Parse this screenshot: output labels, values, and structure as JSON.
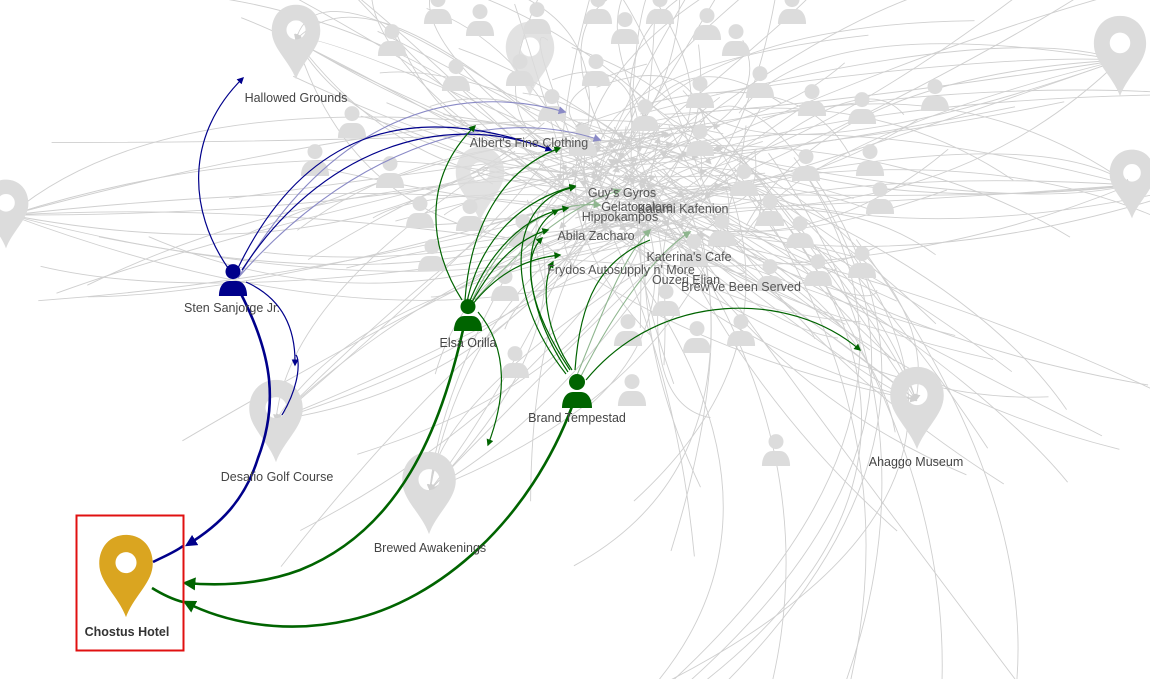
{
  "colors": {
    "focus_location": "#DAA520",
    "person_blue": "#00008B",
    "person_green": "#006400",
    "inactive": "#d3d3d3",
    "highlight_box": "#e01010"
  },
  "persons": [
    {
      "id": "sten",
      "label": "Sten Sanjorge Jr.",
      "color_key": "person_blue"
    },
    {
      "id": "elsa",
      "label": "Elsa Orilla",
      "color_key": "person_green"
    },
    {
      "id": "brand",
      "label": "Brand Tempestad",
      "color_key": "person_green"
    }
  ],
  "locations": [
    {
      "id": "hallowed",
      "label": "Hallowed Grounds"
    },
    {
      "id": "alberts",
      "label": "Albert's Fine Clothing"
    },
    {
      "id": "guys",
      "label": "Guy's Gyros"
    },
    {
      "id": "gelatogalore",
      "label": "Gelatogalore"
    },
    {
      "id": "kalami",
      "label": "Kalami Kafenion"
    },
    {
      "id": "hippokampos",
      "label": "Hippokampos"
    },
    {
      "id": "abila",
      "label": "Abila Zacharo"
    },
    {
      "id": "katerinas",
      "label": "Katerina's Cafe"
    },
    {
      "id": "frydos",
      "label": "Frydos Autosupply n' More"
    },
    {
      "id": "ouzeri",
      "label": "Ouzeri Elian"
    },
    {
      "id": "brewve",
      "label": "Brew've Been Served"
    },
    {
      "id": "desafio",
      "label": "Desafio Golf Course"
    },
    {
      "id": "ahaggo",
      "label": "Ahaggo Museum"
    },
    {
      "id": "brewed",
      "label": "Brewed Awakenings"
    },
    {
      "id": "chostus",
      "label": "Chostus Hotel",
      "focused": true
    }
  ],
  "icons": {
    "person": "person-icon",
    "location": "map-pin-icon"
  }
}
